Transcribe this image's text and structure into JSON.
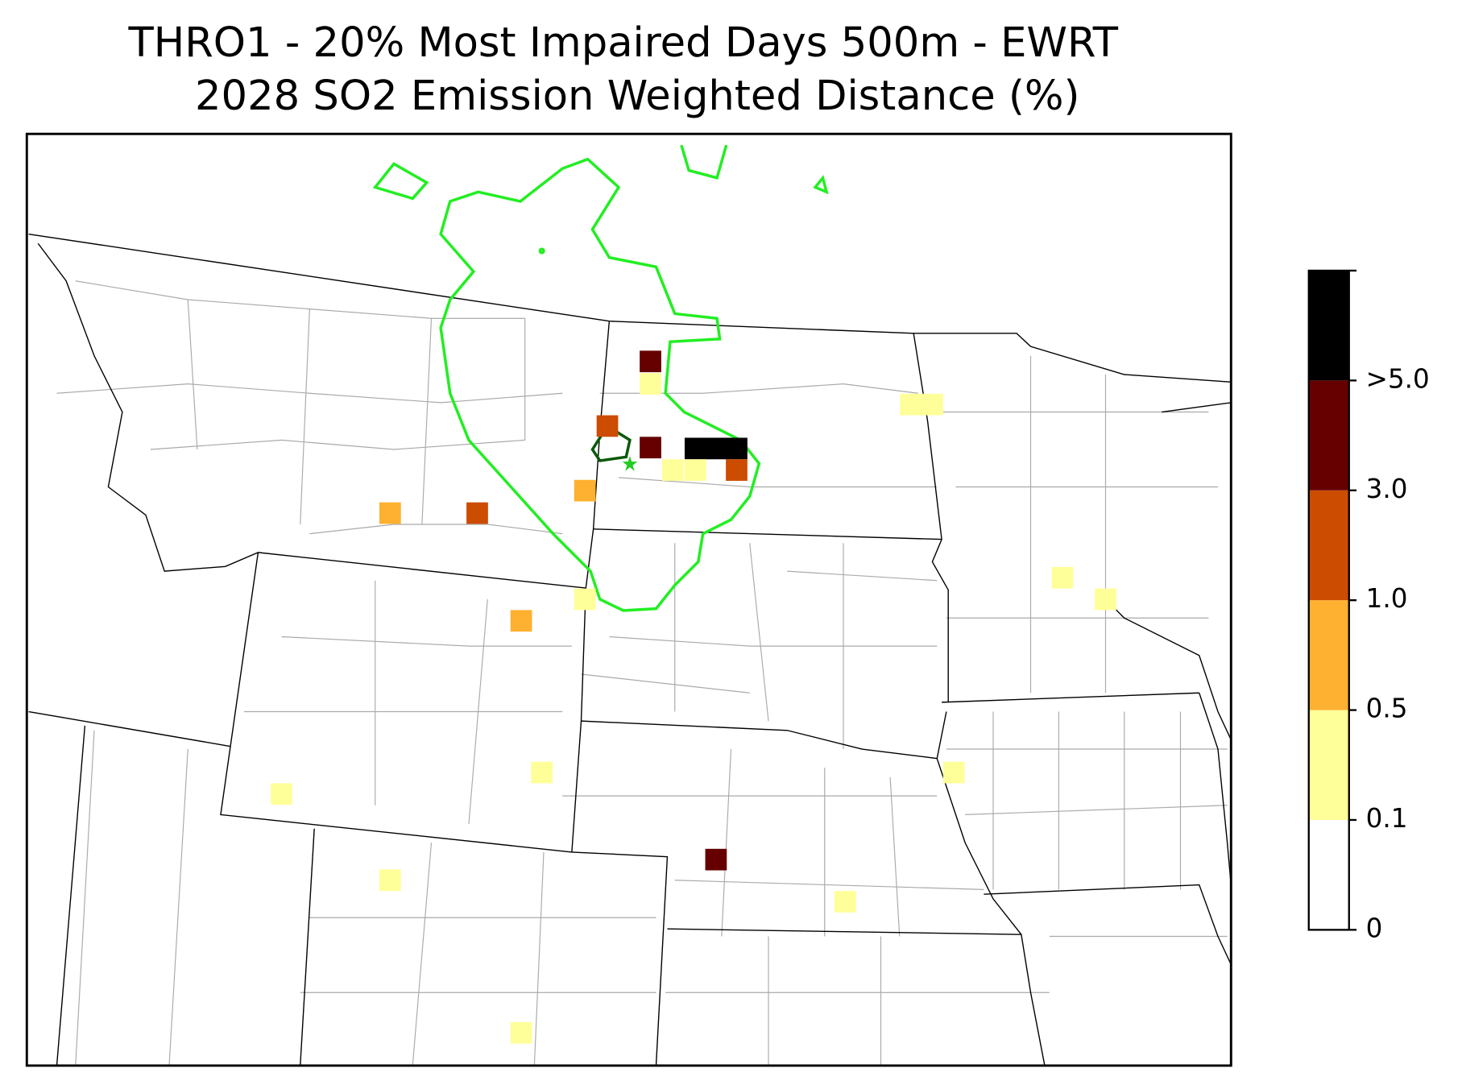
{
  "title_lines": [
    "THRO1 - 20% Most Impaired Days 500m - EWRT",
    "2028 SO2 Emission Weighted Distance (%)"
  ],
  "colorbar": {
    "ticks": [
      0,
      0.1,
      0.5,
      {
        "value": 1,
        "label": "1.0"
      },
      {
        "value": 3,
        "label": "3.0"
      },
      {
        "value": 5,
        "label": ">5.0"
      }
    ],
    "colors": [
      "#ffffff",
      "#ffff99",
      "#feb030",
      "#cc4c02",
      "#660000",
      "#000000"
    ]
  },
  "cells": {
    "values": [
      4,
      0.3,
      2,
      4,
      6,
      6,
      6,
      0.3,
      0.3,
      2,
      0.75,
      0.75,
      2,
      0.3,
      0.75,
      0.3,
      0.3,
      0.3,
      0.3,
      0.3,
      0.3,
      0.3,
      4,
      0.3,
      0.3,
      0.3
    ]
  }
}
